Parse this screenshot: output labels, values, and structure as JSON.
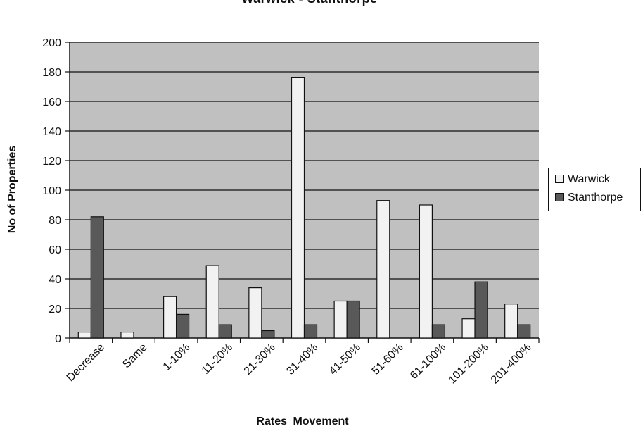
{
  "chart_data": {
    "type": "bar",
    "title": "Warwick - Stanthorpe",
    "xlabel": "Rates   Movement",
    "ylabel": "No of Properties",
    "ylim": [
      0,
      200
    ],
    "yticks": [
      0,
      20,
      40,
      60,
      80,
      100,
      120,
      140,
      160,
      180,
      200
    ],
    "grid": true,
    "legend_position": "right",
    "categories": [
      "Decrease",
      "Same",
      "1-10%",
      "11-20%",
      "21-30%",
      "31-40%",
      "41-50%",
      "51-60%",
      "61-100%",
      "101-200%",
      "201-400%"
    ],
    "series": [
      {
        "name": "Warwick",
        "color": "#f2f2f2",
        "values": [
          4,
          4,
          28,
          49,
          34,
          176,
          25,
          93,
          90,
          13,
          23
        ]
      },
      {
        "name": "Stanthorpe",
        "color": "#595959",
        "values": [
          82,
          0,
          16,
          9,
          5,
          9,
          25,
          0,
          9,
          38,
          9
        ]
      }
    ],
    "plot_background": "#c0c0c0"
  }
}
